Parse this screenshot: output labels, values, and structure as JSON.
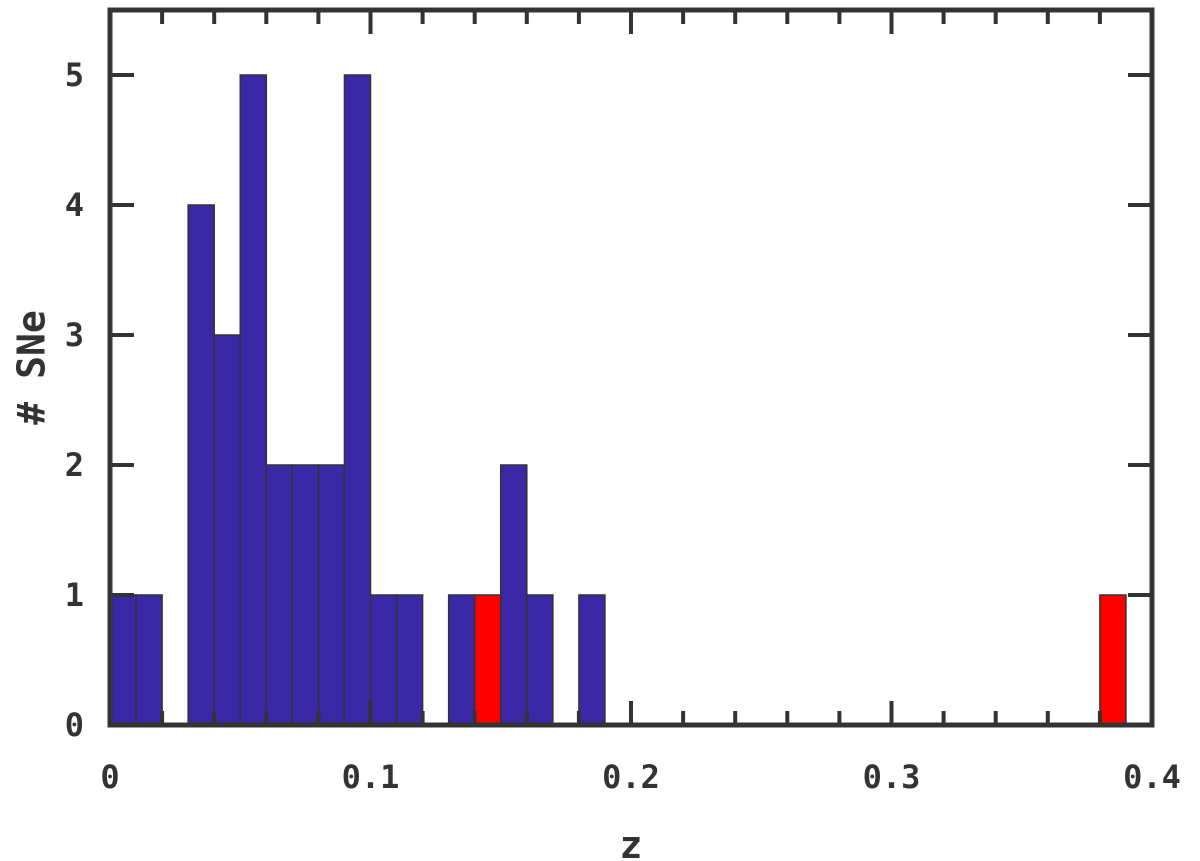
{
  "chart_data": {
    "type": "bar",
    "title": "",
    "xlabel": "z",
    "ylabel": "# SNe",
    "xlim": [
      0,
      0.4
    ],
    "ylim": [
      0,
      5.5
    ],
    "bin_width": 0.01,
    "x_ticks": [
      "0",
      "0.1",
      "0.2",
      "0.3",
      "0.4"
    ],
    "y_ticks": [
      "0",
      "1",
      "2",
      "3",
      "4",
      "5"
    ],
    "grid": false,
    "series": [
      {
        "color": "#3a28a6",
        "bins": [
          {
            "x0": 0.0,
            "count": 1
          },
          {
            "x0": 0.01,
            "count": 1
          },
          {
            "x0": 0.03,
            "count": 4
          },
          {
            "x0": 0.04,
            "count": 3
          },
          {
            "x0": 0.05,
            "count": 5
          },
          {
            "x0": 0.06,
            "count": 2
          },
          {
            "x0": 0.07,
            "count": 2
          },
          {
            "x0": 0.08,
            "count": 2
          },
          {
            "x0": 0.09,
            "count": 5
          },
          {
            "x0": 0.1,
            "count": 1
          },
          {
            "x0": 0.11,
            "count": 1
          },
          {
            "x0": 0.13,
            "count": 1
          },
          {
            "x0": 0.15,
            "count": 2
          },
          {
            "x0": 0.16,
            "count": 1
          },
          {
            "x0": 0.18,
            "count": 1
          }
        ]
      },
      {
        "color": "#ff0000",
        "bins": [
          {
            "x0": 0.14,
            "count": 1
          },
          {
            "x0": 0.38,
            "count": 1
          }
        ]
      }
    ]
  }
}
